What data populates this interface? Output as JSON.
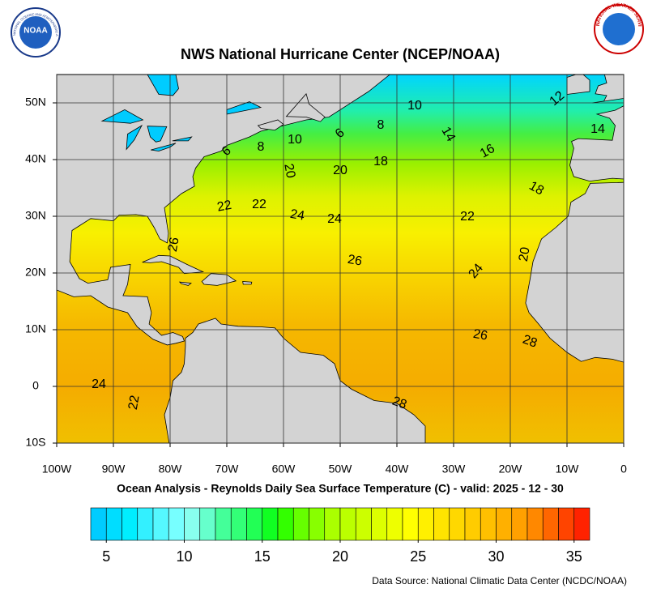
{
  "header": {
    "title": "NWS National Hurricane Center (NCEP/NOAA)",
    "noaa_logo": "NOAA",
    "noaa_ring": "NATIONAL OCEANIC AND ATMOSPHERIC ADMINISTRATION",
    "nws_ring": "NATIONAL WEATHER SERVICE"
  },
  "map": {
    "xlim": [
      -100,
      0
    ],
    "ylim": [
      -10,
      55
    ],
    "xticks": [
      {
        "value": -100,
        "label": "100W"
      },
      {
        "value": -90,
        "label": "90W"
      },
      {
        "value": -80,
        "label": "80W"
      },
      {
        "value": -70,
        "label": "70W"
      },
      {
        "value": -60,
        "label": "60W"
      },
      {
        "value": -50,
        "label": "50W"
      },
      {
        "value": -40,
        "label": "40W"
      },
      {
        "value": -30,
        "label": "30W"
      },
      {
        "value": -20,
        "label": "20W"
      },
      {
        "value": -10,
        "label": "10W"
      },
      0
    ],
    "yticks": [
      {
        "value": -10,
        "label": "10S"
      },
      0,
      {
        "value": 10,
        "label": "10N"
      },
      {
        "value": 20,
        "label": "20N"
      },
      {
        "value": 30,
        "label": "30N"
      },
      {
        "value": 40,
        "label": "40N"
      },
      {
        "value": 50,
        "label": "50N"
      }
    ],
    "grid": true,
    "contour_labels": [
      10,
      12,
      14,
      6,
      8,
      10,
      8,
      6,
      14,
      16,
      18,
      20,
      20,
      18,
      22,
      22,
      24,
      24,
      22,
      26,
      26,
      24,
      20,
      26,
      28,
      24,
      22,
      28
    ],
    "caption": "Ocean Analysis - Reynolds Daily Sea Surface Temperature (C) - valid: 2025 - 12 - 30",
    "source": "Data Source: National Climatic Data Center (NCDC/NOAA)"
  },
  "colorbar": {
    "lim": [
      4,
      36
    ],
    "ticks": [
      5,
      10,
      15,
      20,
      25,
      30,
      35
    ],
    "colors": [
      "#00ccff",
      "#00ddff",
      "#00eeff",
      "#33f0ff",
      "#55f8ff",
      "#77ffff",
      "#88ffee",
      "#66ffcc",
      "#44ff99",
      "#33ff77",
      "#22ff55",
      "#11ff22",
      "#33ff00",
      "#66ff00",
      "#88ff00",
      "#aaff00",
      "#bbff00",
      "#ccff00",
      "#ddff00",
      "#eeff00",
      "#ffff00",
      "#fff000",
      "#ffe400",
      "#ffd800",
      "#ffcc00",
      "#ffc000",
      "#ffb000",
      "#ffa000",
      "#ff8800",
      "#ff6600",
      "#ff4400",
      "#ff2200"
    ]
  }
}
